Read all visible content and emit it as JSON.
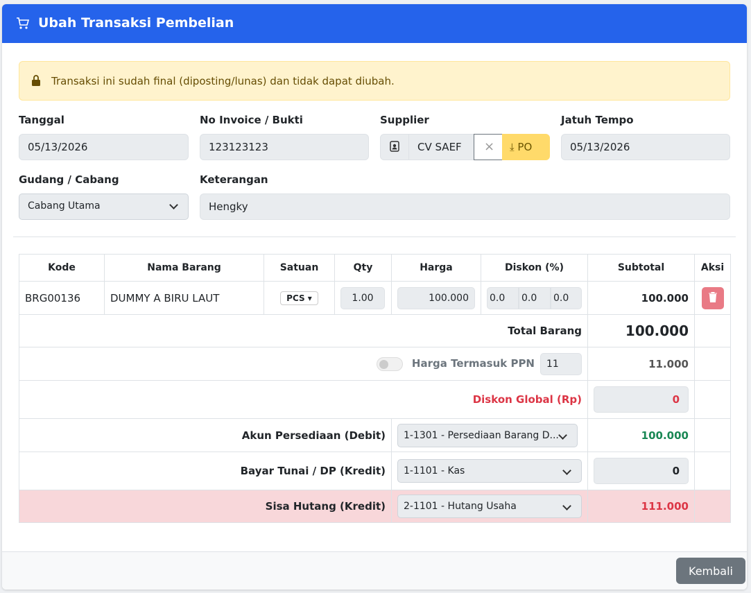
{
  "header": {
    "title": "Ubah Transaksi Pembelian"
  },
  "alert": "Transaksi ini sudah final (diposting/lunas) dan tidak dapat diubah.",
  "form": {
    "tanggal": {
      "label": "Tanggal",
      "value": "05/13/2026"
    },
    "invoice": {
      "label": "No Invoice / Bukti",
      "value": "123123123"
    },
    "supplier": {
      "label": "Supplier",
      "value": "CV SAEF",
      "po": "PO"
    },
    "jatuh_tempo": {
      "label": "Jatuh Tempo",
      "value": "05/13/2026"
    },
    "gudang": {
      "label": "Gudang / Cabang",
      "value": "Cabang Utama"
    },
    "keterangan": {
      "label": "Keterangan",
      "value": "Hengky"
    }
  },
  "table": {
    "headers": [
      "Kode",
      "Nama Barang",
      "Satuan",
      "Qty",
      "Harga",
      "Diskon (%)",
      "Subtotal",
      "Aksi"
    ],
    "rows": [
      {
        "kode": "BRG00136",
        "nama": "DUMMY A BIRU LAUT",
        "satuan": "PCS",
        "qty": "1.00",
        "harga": "100.000",
        "diskon": [
          "0.0",
          "0.0",
          "0.0"
        ],
        "subtotal": "100.000"
      }
    ]
  },
  "summary": {
    "total_barang": {
      "label": "Total Barang",
      "value": "100.000"
    },
    "ppn": {
      "label": "Harga Termasuk PPN",
      "rate": "11",
      "value": "11.000"
    },
    "diskon_global": {
      "label": "Diskon Global (Rp)",
      "value": "0"
    },
    "akun_persediaan": {
      "label": "Akun Persediaan (Debit)",
      "account": "1-1301 - Persediaan Barang D...",
      "value": "100.000"
    },
    "bayar": {
      "label": "Bayar Tunai / DP (Kredit)",
      "account": "1-1101 - Kas",
      "value": "0"
    },
    "sisa_hutang": {
      "label": "Sisa Hutang (Kredit)",
      "account": "2-1101 - Hutang Usaha",
      "value": "111.000"
    }
  },
  "footer": {
    "button": "Kembali"
  }
}
